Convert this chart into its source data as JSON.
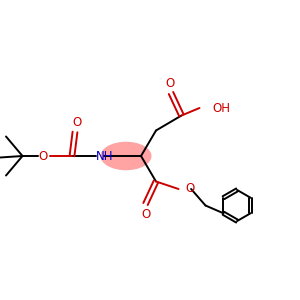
{
  "bg_color": "#ffffff",
  "O_color": "#cc0000",
  "N_color": "#0000cc",
  "highlight_color": "#ff9999",
  "figsize": [
    3.0,
    3.0
  ],
  "dpi": 100,
  "xlim": [
    0,
    10
  ],
  "ylim": [
    2,
    8
  ],
  "lw": 1.4,
  "fs": 8.5
}
